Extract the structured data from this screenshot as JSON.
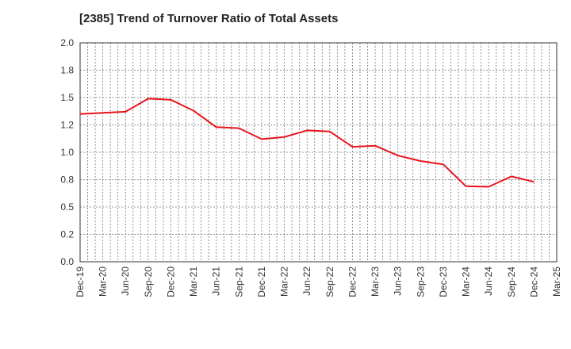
{
  "chart_data": {
    "type": "line",
    "title": "[2385]  Trend of Turnover Ratio of Total Assets",
    "xlabel": "",
    "ylabel": "",
    "ylim": [
      0,
      2.0
    ],
    "y_ticks": [
      "0.0",
      "0.2",
      "0.5",
      "0.8",
      "1.0",
      "1.2",
      "1.5",
      "1.8",
      "2.0"
    ],
    "x_ticks": [
      "Dec-19",
      "Mar-20",
      "Jun-20",
      "Sep-20",
      "Dec-20",
      "Mar-21",
      "Jun-21",
      "Sep-21",
      "Dec-21",
      "Mar-22",
      "Jun-22",
      "Sep-22",
      "Dec-22",
      "Mar-23",
      "Jun-23",
      "Sep-23",
      "Dec-23",
      "Mar-24",
      "Jun-24",
      "Sep-24",
      "Dec-24",
      "Mar-25"
    ],
    "grid": true,
    "series": [
      {
        "color": "#e8141c",
        "x": [
          "Dec-19",
          "Mar-20",
          "Jun-20",
          "Sep-20",
          "Dec-20",
          "Mar-21",
          "Jun-21",
          "Sep-21",
          "Dec-21",
          "Mar-22",
          "Jun-22",
          "Sep-22",
          "Dec-22",
          "Mar-23",
          "Jun-23",
          "Sep-23",
          "Dec-23",
          "Mar-24",
          "Jun-24",
          "Sep-24",
          "Dec-24"
        ],
        "values": [
          1.35,
          1.36,
          1.37,
          1.49,
          1.48,
          1.38,
          1.23,
          1.22,
          1.12,
          1.14,
          1.2,
          1.19,
          1.05,
          1.06,
          0.97,
          0.92,
          0.89,
          0.69,
          0.685,
          0.78,
          0.73
        ]
      }
    ]
  }
}
